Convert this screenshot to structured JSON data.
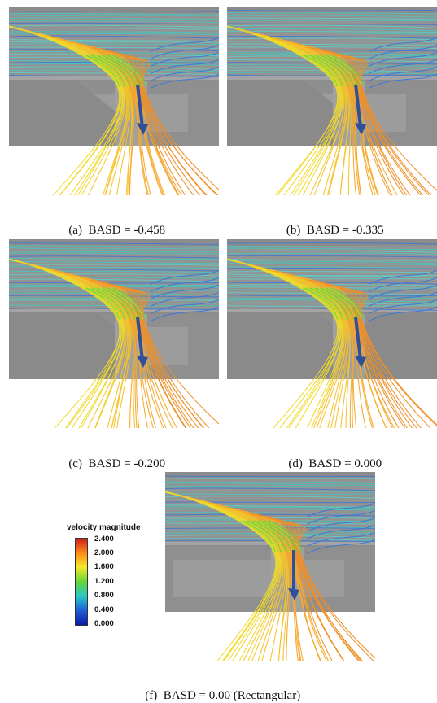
{
  "panels": [
    {
      "label": "(a)",
      "caption": "BASD = -0.458",
      "basd": -0.458,
      "shape": "wedge-strong"
    },
    {
      "label": "(b)",
      "caption": "BASD = -0.335",
      "basd": -0.335,
      "shape": "wedge-mid"
    },
    {
      "label": "(c)",
      "caption": "BASD = -0.200",
      "basd": -0.2,
      "shape": "wedge-small"
    },
    {
      "label": "(d)",
      "caption": "BASD = 0.000",
      "basd": 0.0,
      "shape": "symmetric"
    },
    {
      "label": "(f)",
      "caption": "BASD = 0.00 (Rectangular)",
      "basd": 0.0,
      "shape": "rectangular"
    }
  ],
  "legend": {
    "title": "velocity magnitude",
    "ticks": [
      "2.400",
      "2.000",
      "1.600",
      "1.200",
      "0.800",
      "0.400",
      "0.000"
    ],
    "range": [
      0.0,
      2.4
    ],
    "colors": [
      "#cc1f1a",
      "#ff8c1a",
      "#f5e82a",
      "#66d63a",
      "#27c7c7",
      "#1f5fd6",
      "#0a1aa8"
    ]
  },
  "colors": {
    "wall": "#8c8c8c",
    "wall_dark": "#7a7a7a",
    "arrow": "#2f4f9a",
    "stream_top": "#3dc9c4",
    "stream_blue": "#3c78d8"
  }
}
